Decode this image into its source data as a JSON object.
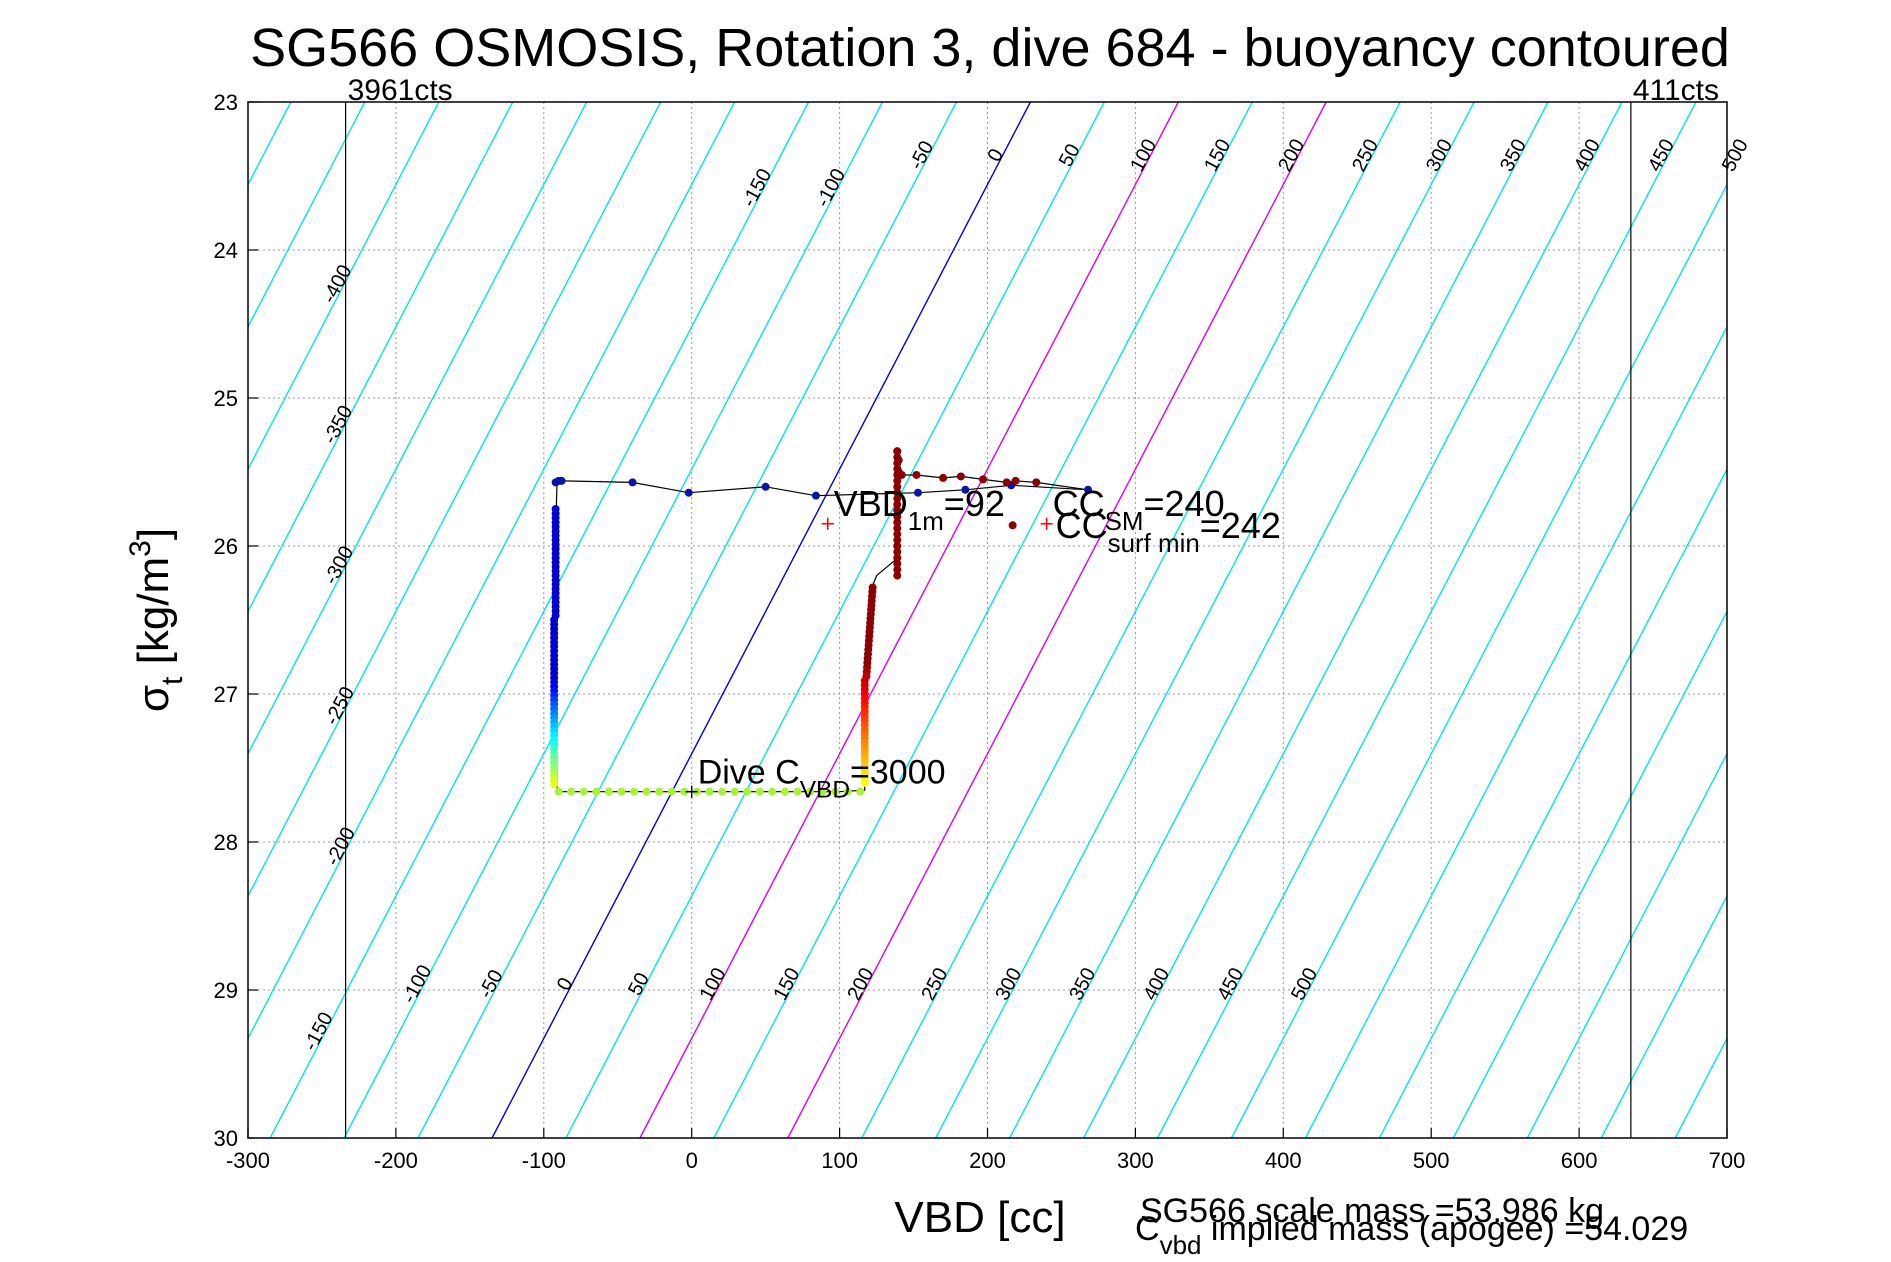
{
  "chart_data": {
    "type": "scatter",
    "title": "SG566 OSMOSIS, Rotation 3, dive 684 - buoyancy contoured",
    "xlabel": "VBD [cc]",
    "ylabel_main": "σ",
    "ylabel_sub": "t",
    "ylabel_rest": " [kg/m",
    "ylabel_sup": "3",
    "ylabel_close": "]",
    "xlim": [
      -300,
      700
    ],
    "ylim": [
      23,
      30
    ],
    "y_reversed": true,
    "grid": true,
    "x_ticks": [
      -300,
      -200,
      -100,
      0,
      100,
      200,
      300,
      400,
      500,
      600,
      700
    ],
    "y_ticks": [
      23,
      24,
      25,
      26,
      27,
      28,
      29,
      30
    ],
    "contour_levels": [
      -400,
      -350,
      -300,
      -250,
      -200,
      -150,
      -100,
      -50,
      0,
      50,
      100,
      150,
      200,
      250,
      300,
      350,
      400,
      450,
      500
    ],
    "contour_colors": {
      "default": "#00e5e5",
      "zero": "#0000dd",
      "highlight": "#e000e0"
    },
    "contour_top_labels": [
      "-150",
      "-100",
      "-50",
      "0",
      "50",
      "100",
      "150",
      "200",
      "250",
      "300",
      "350",
      "400",
      "450",
      "500"
    ],
    "contour_left_labels": [
      "-400",
      "-350",
      "-300",
      "-250",
      "-200"
    ],
    "contour_bottom_labels": [
      "-150",
      "-100",
      "-50",
      "0",
      "50",
      "100",
      "150",
      "200",
      "250",
      "300",
      "350",
      "400",
      "450",
      "500"
    ],
    "vertical_lines": [
      {
        "x": -234,
        "label": "3961cts"
      },
      {
        "x": 635,
        "label": "411cts"
      }
    ],
    "dive_track": {
      "color": "#000000",
      "points": [
        [
          -91,
          25.56
        ],
        [
          -87,
          25.56
        ],
        [
          -40,
          25.57
        ],
        [
          -2,
          25.64
        ],
        [
          50,
          25.6
        ],
        [
          84,
          25.66
        ],
        [
          153,
          25.64
        ],
        [
          185,
          25.62
        ],
        [
          216,
          25.59
        ],
        [
          268,
          25.62
        ],
        [
          233,
          25.57
        ],
        [
          219,
          25.56
        ],
        [
          213,
          25.57
        ],
        [
          197,
          25.55
        ],
        [
          182,
          25.53
        ],
        [
          170,
          25.54
        ],
        [
          152,
          25.52
        ],
        [
          142,
          25.52
        ],
        [
          140,
          25.42
        ],
        [
          139,
          25.35
        ],
        [
          138,
          25.92
        ],
        [
          140,
          26.05
        ],
        [
          137,
          26.1
        ],
        [
          125,
          26.2
        ],
        [
          121,
          26.3
        ],
        [
          122,
          26.6
        ],
        [
          119,
          26.8
        ],
        [
          117,
          27.1
        ],
        [
          117,
          27.5
        ],
        [
          117,
          27.65
        ],
        [
          100,
          27.66
        ],
        [
          0,
          27.66
        ],
        [
          -91,
          27.66
        ],
        [
          -91,
          27.5
        ],
        [
          -92,
          27.1
        ],
        [
          -93,
          26.8
        ],
        [
          -92,
          26.5
        ],
        [
          -93,
          26.2
        ],
        [
          -92,
          25.9
        ],
        [
          -91,
          25.56
        ]
      ]
    },
    "down_points": [
      [
        -92,
        25.57
      ],
      [
        -90,
        25.56
      ],
      [
        -88,
        25.56
      ],
      [
        -40,
        25.57
      ],
      [
        -2,
        25.64
      ],
      [
        50,
        25.6
      ],
      [
        84,
        25.66
      ],
      [
        153,
        25.64
      ],
      [
        185,
        25.62
      ],
      [
        216,
        25.59
      ],
      [
        268,
        25.62
      ]
    ],
    "up_points": [
      [
        233,
        25.57
      ],
      [
        219,
        25.56
      ],
      [
        213,
        25.57
      ],
      [
        197,
        25.55
      ],
      [
        182,
        25.53
      ],
      [
        170,
        25.54
      ],
      [
        152,
        25.52
      ],
      [
        142,
        25.52
      ],
      [
        140,
        25.42
      ],
      [
        139,
        25.36
      ],
      [
        140,
        25.5
      ],
      [
        217,
        25.86
      ]
    ],
    "annotations": [
      {
        "text": "VBD",
        "sub": "1m",
        "tail": "=92",
        "x": 92,
        "y": 25.85,
        "color": "#ff0000",
        "marker": "+"
      },
      {
        "text": "CC",
        "sub": "SM",
        "tail": "=240",
        "x": 240,
        "y": 25.85,
        "color": "#ff0000",
        "marker": "+"
      },
      {
        "text": "CC",
        "sub": "surf min",
        "tail": "=242",
        "x": 242,
        "y": 26.0,
        "color": "#ff0000",
        "marker": "none"
      },
      {
        "text": "Dive C",
        "sub": "VBD",
        "tail": "=3000",
        "x": 0,
        "y": 27.66,
        "color": "#000000",
        "marker": "+"
      }
    ],
    "footer": {
      "scale_mass": "SG566 scale mass =53.986 kg",
      "implied_main": "C",
      "implied_sub": "vbd",
      "implied_rest": " implied mass (apogee) =54.029"
    }
  }
}
